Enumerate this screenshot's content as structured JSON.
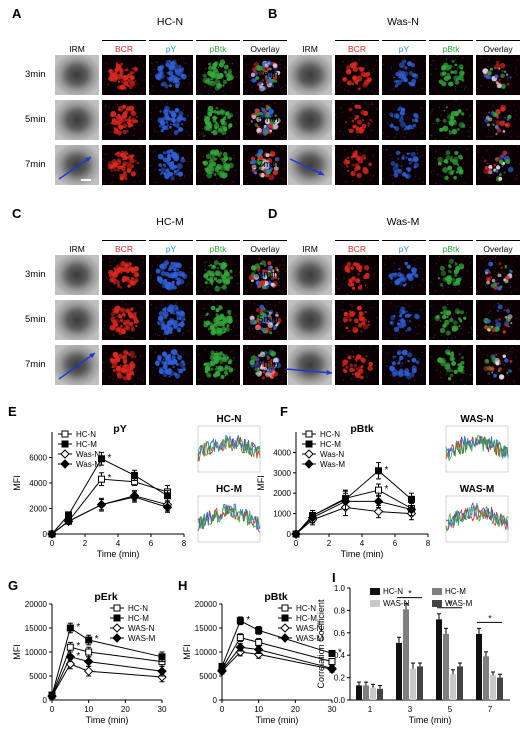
{
  "colors": {
    "red": "#d9281e",
    "blue": "#2f5fd8",
    "green": "#33a63a",
    "black": "#000000",
    "grey": "#888888"
  },
  "panels": [
    {
      "letter": "A",
      "title": "HC-N"
    },
    {
      "letter": "B",
      "title": "Was-N"
    },
    {
      "letter": "C",
      "title": "HC-M"
    },
    {
      "letter": "D",
      "title": "Was-M"
    }
  ],
  "channels": [
    "IRM",
    "BCR",
    "pY",
    "pBtk",
    "Overlay"
  ],
  "times": [
    "3min",
    "5min",
    "7min"
  ],
  "plotE": {
    "letter": "E",
    "title": "pY",
    "ylabel": "MFI",
    "xlabel": "Time (min)",
    "legend": [
      "HC-N",
      "HC-M",
      "Was-N",
      "Was-M"
    ],
    "side_titles": [
      "HC-N",
      "HC-M"
    ]
  },
  "plotF": {
    "letter": "F",
    "title": "pBtk",
    "ylabel": "MFI",
    "xlabel": "Time (min)",
    "legend": [
      "HC-N",
      "HC-M",
      "Was-N",
      "Was-M"
    ],
    "side_titles": [
      "WAS-N",
      "WAS-M"
    ]
  },
  "plotG": {
    "letter": "G",
    "title": "pErk",
    "ylabel": "MFI",
    "xlabel": "Time (min)",
    "legend": [
      "HC-N",
      "HC-M",
      "WAS-N",
      "WAS-M"
    ]
  },
  "plotH": {
    "letter": "H",
    "title": "pBtk",
    "ylabel": "MFI",
    "xlabel": "Time (min)",
    "legend": [
      "HC-N",
      "HC-M",
      "WAS-N",
      "WAS-M"
    ]
  },
  "plotI": {
    "letter": "I",
    "ylabel": "Correlation Coefficient",
    "xlabel": "Time (min)",
    "legend": [
      "HC-N",
      "HC-M",
      "WAS-N",
      "WAS-M"
    ]
  },
  "chart_data": [
    {
      "id": "E",
      "type": "line",
      "title": "pY",
      "xlabel": "Time (min)",
      "ylabel": "MFI",
      "x": [
        0,
        1,
        3,
        5,
        7
      ],
      "xticks": [
        0,
        2,
        4,
        6,
        8
      ],
      "ylim": [
        0,
        8000
      ],
      "yticks": [
        0,
        2000,
        4000,
        6000
      ],
      "series": [
        {
          "name": "HC-N",
          "values": [
            0,
            1000,
            4300,
            4100,
            3300
          ],
          "err": [
            0,
            200,
            500,
            300,
            500
          ]
        },
        {
          "name": "HC-M",
          "values": [
            0,
            1500,
            5900,
            4600,
            3000
          ],
          "err": [
            0,
            200,
            500,
            400,
            400
          ]
        },
        {
          "name": "Was-N",
          "values": [
            0,
            1000,
            2300,
            3000,
            2300
          ],
          "err": [
            0,
            200,
            500,
            400,
            500
          ]
        },
        {
          "name": "Was-M",
          "values": [
            0,
            1000,
            2300,
            2900,
            2100
          ],
          "err": [
            0,
            200,
            400,
            400,
            400
          ]
        }
      ],
      "stars": [
        [
          3,
          5900
        ],
        [
          3,
          4300
        ]
      ]
    },
    {
      "id": "F",
      "type": "line",
      "title": "pBtk",
      "xlabel": "Time (min)",
      "ylabel": "MFI",
      "x": [
        0,
        1,
        3,
        5,
        7
      ],
      "xticks": [
        0,
        2,
        4,
        6,
        8
      ],
      "ylim": [
        0,
        5000
      ],
      "yticks": [
        0,
        1000,
        2000,
        3000,
        4000
      ],
      "series": [
        {
          "name": "HC-N",
          "values": [
            0,
            900,
            1750,
            2150,
            1250
          ],
          "err": [
            0,
            250,
            400,
            300,
            300
          ]
        },
        {
          "name": "HC-M",
          "values": [
            0,
            900,
            1700,
            3100,
            1700
          ],
          "err": [
            0,
            250,
            400,
            400,
            300
          ]
        },
        {
          "name": "Was-N",
          "values": [
            0,
            700,
            1300,
            1100,
            1000
          ],
          "err": [
            0,
            250,
            400,
            300,
            300
          ]
        },
        {
          "name": "Was-M",
          "values": [
            0,
            800,
            1600,
            1600,
            1200
          ],
          "err": [
            0,
            250,
            400,
            300,
            300
          ]
        }
      ],
      "stars": [
        [
          5,
          3100
        ],
        [
          5,
          2150
        ]
      ]
    },
    {
      "id": "G",
      "type": "line",
      "title": "pErk",
      "xlabel": "Time (min)",
      "ylabel": "MFI",
      "x": [
        0,
        5,
        10,
        30
      ],
      "xticks": [
        0,
        10,
        20,
        30
      ],
      "ylim": [
        0,
        20000
      ],
      "yticks": [
        0,
        5000,
        10000,
        15000,
        20000
      ],
      "series": [
        {
          "name": "HC-N",
          "values": [
            1000,
            11000,
            10000,
            8000
          ],
          "err": [
            500,
            1000,
            1000,
            1000
          ]
        },
        {
          "name": "HC-M",
          "values": [
            1000,
            15000,
            12500,
            9000
          ],
          "err": [
            500,
            1000,
            1000,
            1000
          ]
        },
        {
          "name": "WAS-N",
          "values": [
            800,
            7500,
            6000,
            4800
          ],
          "err": [
            500,
            1000,
            1000,
            1000
          ]
        },
        {
          "name": "WAS-M",
          "values": [
            800,
            9000,
            8000,
            6000
          ],
          "err": [
            500,
            1000,
            1000,
            1000
          ]
        }
      ],
      "stars": [
        [
          5,
          15000
        ],
        [
          5,
          11000
        ],
        [
          5,
          9000
        ],
        [
          10,
          12500
        ]
      ]
    },
    {
      "id": "H",
      "type": "line",
      "title": "pBtk",
      "xlabel": "Time (min)",
      "ylabel": "MFI",
      "x": [
        0,
        5,
        10,
        30
      ],
      "xticks": [
        0,
        10,
        20,
        30
      ],
      "ylim": [
        0,
        20000
      ],
      "yticks": [
        0,
        5000,
        10000,
        15000,
        20000
      ],
      "series": [
        {
          "name": "HC-N",
          "values": [
            6500,
            13000,
            12000,
            8000
          ],
          "err": [
            600,
            800,
            800,
            600
          ]
        },
        {
          "name": "HC-M",
          "values": [
            7000,
            16500,
            14500,
            9700
          ],
          "err": [
            600,
            800,
            800,
            600
          ]
        },
        {
          "name": "WAS-N",
          "values": [
            6000,
            10000,
            9500,
            6400
          ],
          "err": [
            600,
            800,
            800,
            600
          ]
        },
        {
          "name": "WAS-M",
          "values": [
            6200,
            11000,
            10500,
            6600
          ],
          "err": [
            600,
            800,
            800,
            600
          ]
        }
      ],
      "stars": [
        [
          5,
          16500
        ],
        [
          30,
          9700
        ]
      ]
    },
    {
      "id": "I",
      "type": "bar",
      "xlabel": "Time (min)",
      "ylabel": "Correlation Coefficient",
      "categories": [
        "1",
        "3",
        "5",
        "7"
      ],
      "ylim": [
        0,
        1.0
      ],
      "yticks": [
        0.0,
        0.2,
        0.4,
        0.6,
        0.8,
        1.0
      ],
      "series": [
        {
          "name": "HC-N",
          "color": "#111111",
          "values": [
            0.13,
            0.51,
            0.72,
            0.59
          ],
          "err": [
            0.03,
            0.05,
            0.05,
            0.05
          ]
        },
        {
          "name": "HC-M",
          "color": "#7f7f7f",
          "values": [
            0.13,
            0.81,
            0.59,
            0.39
          ],
          "err": [
            0.03,
            0.05,
            0.05,
            0.04
          ]
        },
        {
          "name": "WAS-N",
          "color": "#c8c8c8",
          "values": [
            0.11,
            0.28,
            0.23,
            0.22
          ],
          "err": [
            0.03,
            0.05,
            0.04,
            0.03
          ]
        },
        {
          "name": "WAS-M",
          "color": "#444444",
          "values": [
            0.1,
            0.3,
            0.3,
            0.2
          ],
          "err": [
            0.03,
            0.03,
            0.03,
            0.03
          ]
        }
      ],
      "sig_label": "*"
    }
  ]
}
